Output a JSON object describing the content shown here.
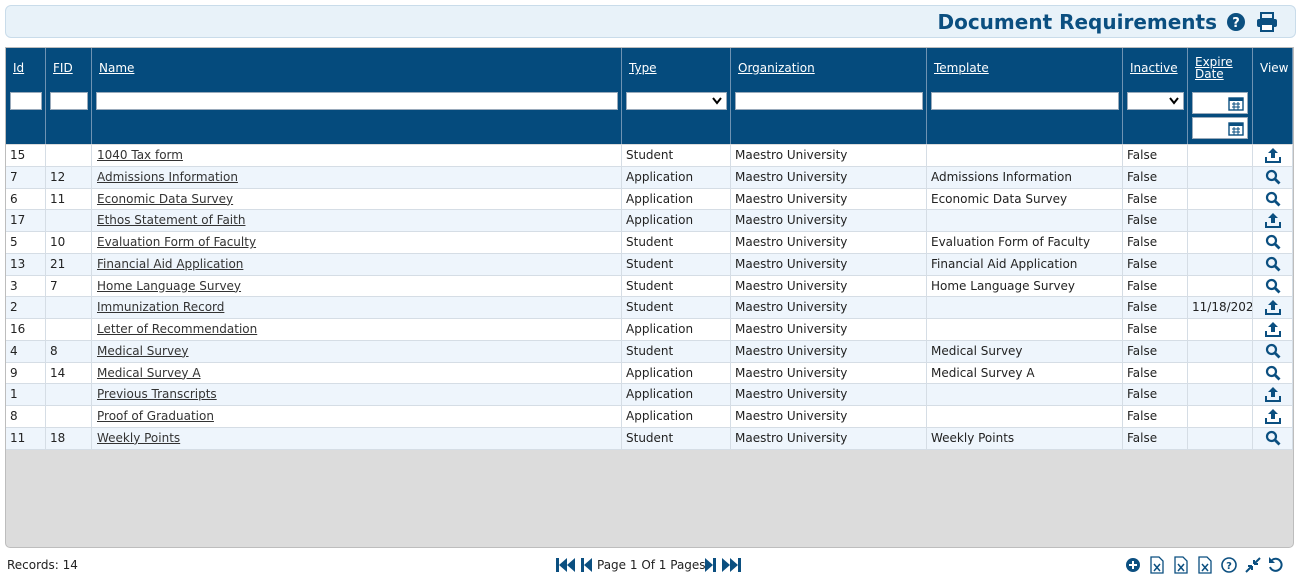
{
  "header": {
    "title": "Document Requirements"
  },
  "table": {
    "columns": {
      "id": "Id",
      "fid": "FID",
      "name": "Name",
      "type": "Type",
      "organization": "Organization",
      "template": "Template",
      "inactive": "Inactive",
      "expire_date": "Expire Date",
      "view": "View"
    },
    "rows": [
      {
        "id": 15,
        "name": "1040 Tax form",
        "type": "Student",
        "organization": "Maestro University",
        "inactive": "False"
      },
      {
        "id": 7,
        "fid": 12,
        "name": "Admissions Information",
        "type": "Application",
        "organization": "Maestro University",
        "template": "Admissions Information",
        "inactive": "False"
      },
      {
        "id": 6,
        "fid": 11,
        "name": "Economic Data Survey",
        "type": "Application",
        "organization": "Maestro University",
        "template": "Economic Data Survey",
        "inactive": "False"
      },
      {
        "id": 17,
        "name": "Ethos Statement of Faith",
        "type": "Application",
        "organization": "Maestro University",
        "inactive": "False"
      },
      {
        "id": 5,
        "fid": 10,
        "name": "Evaluation Form of Faculty",
        "type": "Student",
        "organization": "Maestro University",
        "template": "Evaluation Form of Faculty",
        "inactive": "False"
      },
      {
        "id": 13,
        "fid": 21,
        "name": "Financial Aid Application",
        "type": "Student",
        "organization": "Maestro University",
        "template": "Financial Aid Application",
        "inactive": "False"
      },
      {
        "id": 3,
        "fid": 7,
        "name": "Home Language Survey",
        "type": "Student",
        "organization": "Maestro University",
        "template": "Home Language Survey",
        "inactive": "False"
      },
      {
        "id": 2,
        "name": "Immunization Record",
        "type": "Student",
        "organization": "Maestro University",
        "inactive": "False",
        "expire_date": "11/18/202"
      },
      {
        "id": 16,
        "name": "Letter of Recommendation",
        "type": "Application",
        "organization": "Maestro University",
        "inactive": "False"
      },
      {
        "id": 4,
        "fid": 8,
        "name": "Medical Survey",
        "type": "Student",
        "organization": "Maestro University",
        "template": "Medical Survey",
        "inactive": "False"
      },
      {
        "id": 9,
        "fid": 14,
        "name": "Medical Survey A",
        "type": "Application",
        "organization": "Maestro University",
        "template": "Medical Survey A",
        "inactive": "False"
      },
      {
        "id": 1,
        "name": "Previous Transcripts",
        "type": "Application",
        "organization": "Maestro University",
        "inactive": "False"
      },
      {
        "id": 8,
        "name": "Proof of Graduation",
        "type": "Application",
        "organization": "Maestro University",
        "inactive": "False"
      },
      {
        "id": 11,
        "fid": 18,
        "name": "Weekly Points",
        "type": "Student",
        "organization": "Maestro University",
        "template": "Weekly Points",
        "inactive": "False"
      }
    ]
  },
  "footer": {
    "records_label": "Records:",
    "records_count": 14,
    "pagination": "Page 1 Of 1 Pages"
  }
}
